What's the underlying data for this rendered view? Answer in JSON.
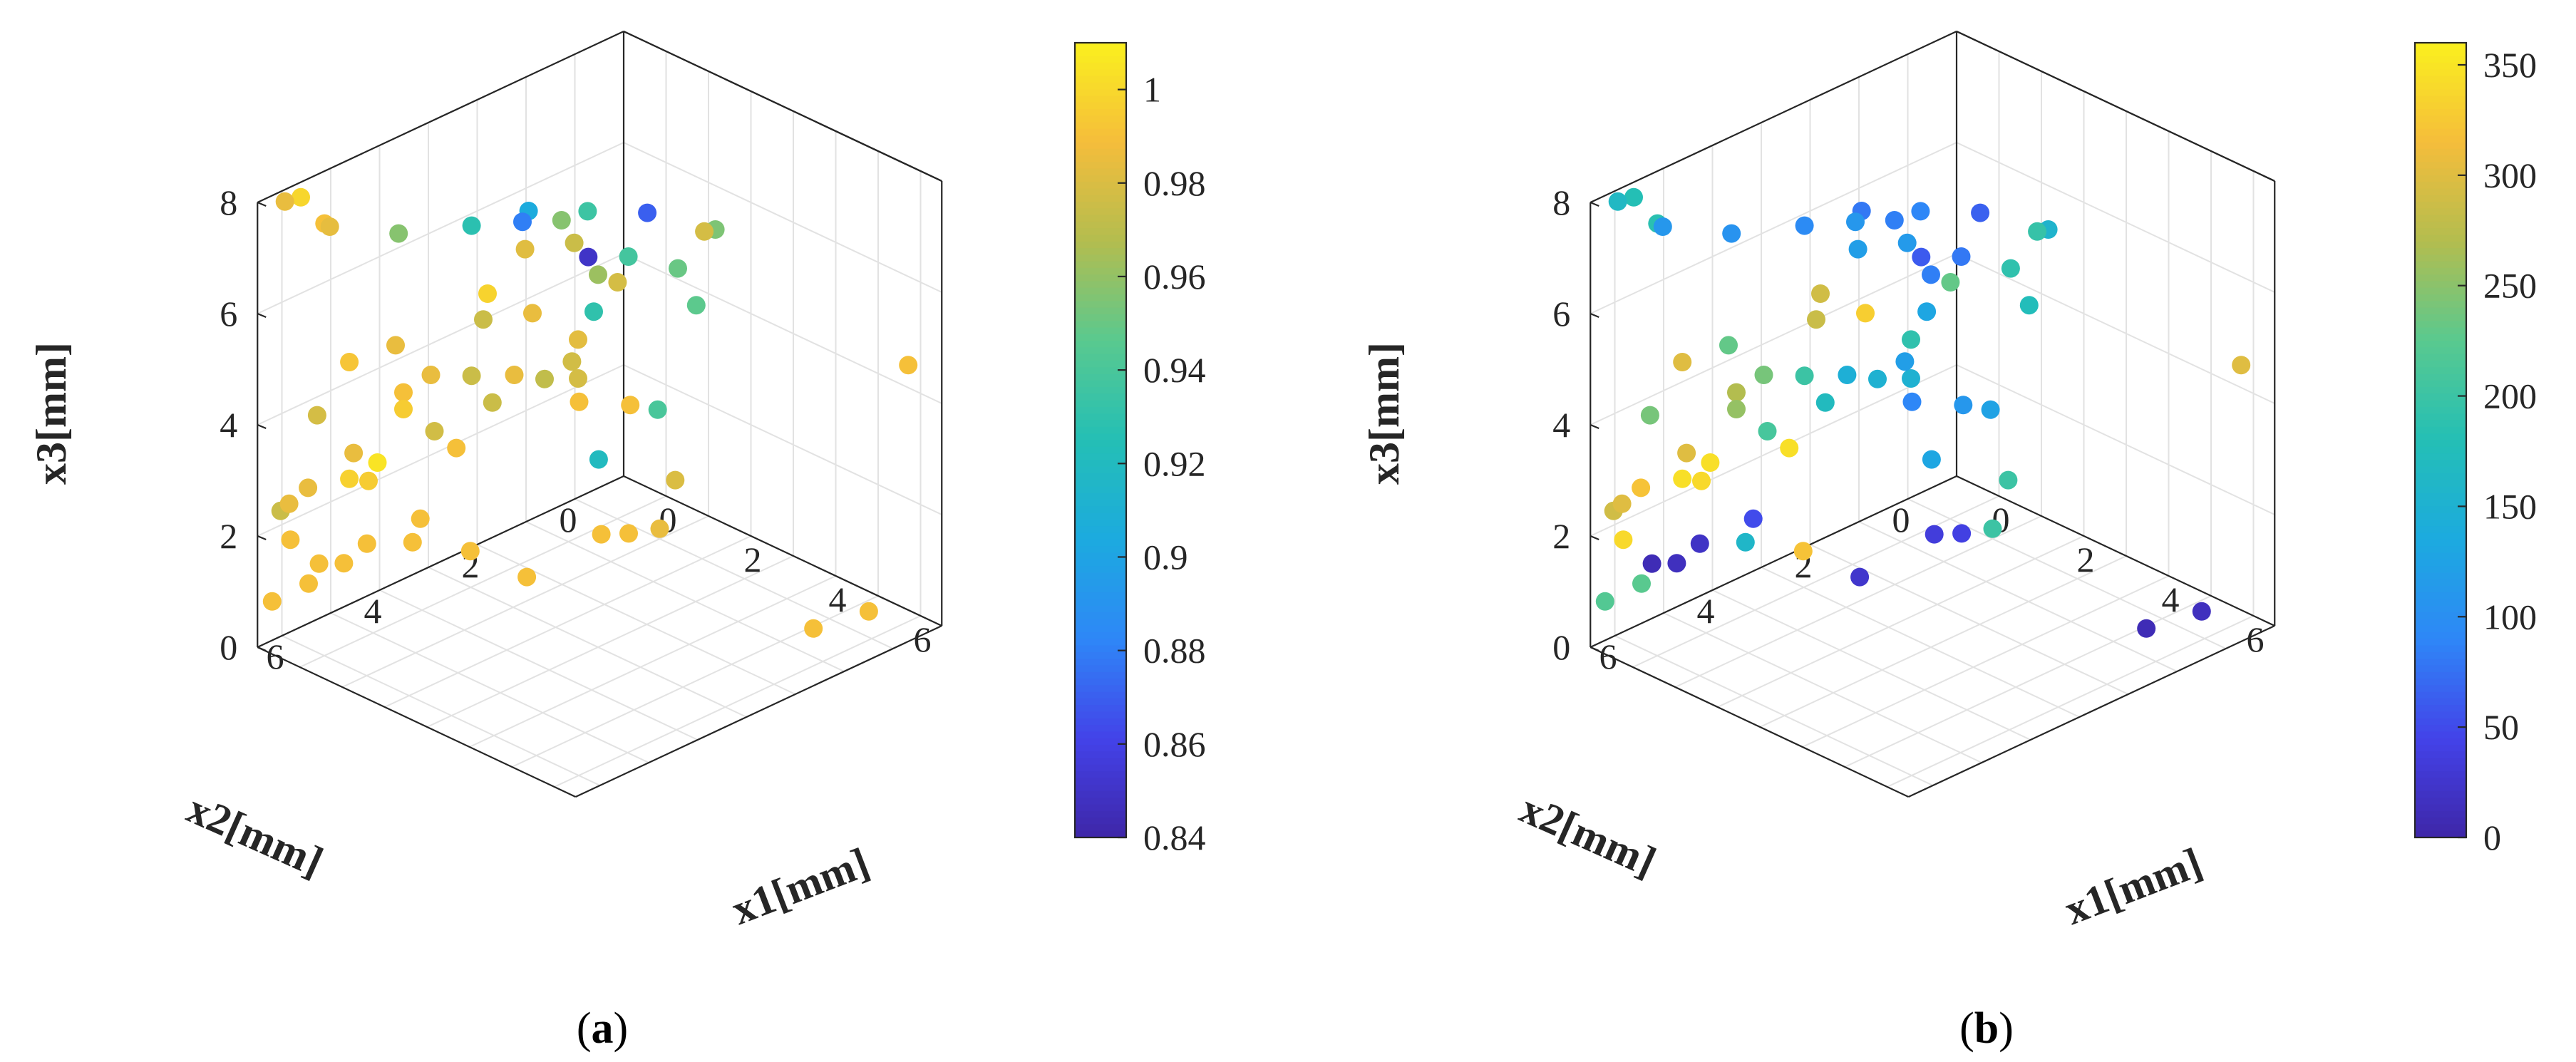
{
  "colormap": [
    "#3e26a8",
    "#4343e9",
    "#2e87f7",
    "#1caadf",
    "#24bfb5",
    "#59c98f",
    "#b3bd4f",
    "#f5bd3b",
    "#faf01e"
  ],
  "chart_data": [
    {
      "type": "scatter3d",
      "panel": "a",
      "caption_letter": "a",
      "caption_open": "(",
      "caption_close": ")",
      "xlabel": "x1[mm]",
      "ylabel": "x2[mm]",
      "zlabel": "x3[mm]",
      "xlim": [
        0,
        7.5
      ],
      "ylim": [
        0,
        7.5
      ],
      "zlim": [
        0,
        8
      ],
      "x_ticks": [
        "0",
        "2",
        "4",
        "6"
      ],
      "y_ticks": [
        "0",
        "2",
        "4",
        "6"
      ],
      "z_ticks": [
        "0",
        "2",
        "4",
        "6",
        "8"
      ],
      "colorbar": {
        "range": [
          0.84,
          1.01
        ],
        "ticks": [
          "0.84",
          "0.86",
          "0.88",
          "0.9",
          "0.92",
          "0.94",
          "0.96",
          "0.98",
          "1"
        ]
      },
      "points": [
        [
          0.3,
          7.2,
          8.0,
          0.985
        ],
        [
          0.1,
          6.7,
          7.8,
          0.999
        ],
        [
          0.2,
          6.3,
          7.2,
          0.99
        ],
        [
          0.9,
          6.8,
          7.6,
          0.984
        ],
        [
          1.6,
          6.0,
          7.4,
          0.957
        ],
        [
          2.4,
          5.2,
          7.5,
          0.928
        ],
        [
          3.4,
          4.9,
          8.0,
          0.905
        ],
        [
          3.6,
          4.4,
          7.7,
          0.957
        ],
        [
          5.7,
          3.3,
          7.8,
          0.978
        ],
        [
          6.2,
          3.9,
          6.9,
          0.947
        ],
        [
          5.5,
          2.9,
          7.6,
          0.955
        ],
        [
          4.7,
          3.6,
          7.9,
          0.87
        ],
        [
          4.1,
          4.3,
          8.0,
          0.935
        ],
        [
          3.6,
          5.2,
          8.0,
          0.88
        ],
        [
          4.6,
          3.9,
          7.2,
          0.938
        ],
        [
          3.9,
          4.4,
          7.4,
          0.975
        ],
        [
          3.2,
          4.8,
          7.2,
          0.982
        ],
        [
          4.0,
          4.2,
          7.1,
          0.85
        ],
        [
          4.0,
          4.0,
          6.7,
          0.962
        ],
        [
          4.0,
          3.6,
          6.4,
          0.978
        ],
        [
          3.9,
          4.0,
          6.0,
          0.93
        ],
        [
          4.5,
          2.8,
          6.5,
          0.95
        ],
        [
          2.2,
          4.7,
          6.0,
          0.998
        ],
        [
          1.3,
          5.8,
          5.2,
          0.985
        ],
        [
          2.8,
          4.3,
          5.7,
          0.985
        ],
        [
          2.1,
          4.7,
          5.5,
          0.975
        ],
        [
          3.3,
          3.8,
          5.2,
          0.983
        ],
        [
          3.2,
          4.4,
          4.7,
          0.972
        ],
        [
          2.1,
          5.7,
          3.9,
          0.977
        ],
        [
          0.9,
          6.4,
          5.0,
          0.992
        ],
        [
          0.6,
          6.8,
          4.1,
          0.978
        ],
        [
          2.6,
          4.5,
          4.6,
          0.985
        ],
        [
          3.3,
          3.8,
          4.5,
          0.978
        ],
        [
          2.2,
          4.6,
          4.0,
          0.975
        ],
        [
          3.5,
          4.1,
          5.0,
          0.977
        ],
        [
          2.4,
          5.2,
          4.8,
          0.975
        ],
        [
          1.9,
          5.6,
          4.8,
          0.985
        ],
        [
          1.6,
          5.9,
          4.5,
          0.99
        ],
        [
          1.6,
          5.9,
          4.2,
          0.995
        ],
        [
          1.1,
          6.0,
          3.1,
          1.005
        ],
        [
          1.0,
          6.4,
          3.4,
          0.985
        ],
        [
          0.9,
          6.4,
          2.9,
          0.997
        ],
        [
          0.5,
          6.9,
          2.8,
          0.985
        ],
        [
          0.4,
          7.2,
          2.6,
          0.985
        ],
        [
          0.2,
          7.2,
          2.4,
          0.975
        ],
        [
          0.2,
          7.0,
          1.8,
          0.99
        ],
        [
          2.5,
          5.6,
          3.7,
          0.99
        ],
        [
          3.9,
          4.3,
          4.5,
          0.99
        ],
        [
          4.3,
          3.6,
          4.3,
          0.99
        ],
        [
          2.6,
          5.4,
          1.8,
          0.99
        ],
        [
          1.7,
          5.8,
          1.8,
          0.99
        ],
        [
          1.2,
          6.3,
          1.8,
          0.99
        ],
        [
          1.0,
          6.6,
          1.5,
          0.99
        ],
        [
          0.3,
          6.5,
          1.2,
          0.99
        ],
        [
          0.0,
          7.2,
          0.7,
          0.99
        ],
        [
          0.4,
          6.8,
          1.0,
          0.99
        ],
        [
          3.9,
          3.9,
          3.3,
          0.92
        ],
        [
          4.6,
          3.3,
          4.2,
          0.94
        ],
        [
          4.9,
          3.2,
          3.0,
          0.98
        ],
        [
          5.8,
          4.3,
          2.9,
          0.985
        ],
        [
          7.4,
          0.6,
          4.9,
          0.99
        ],
        [
          6.2,
          1.5,
          0.1,
          0.99
        ],
        [
          6.7,
          0.8,
          0.3,
          0.99
        ],
        [
          1.4,
          3.2,
          0.0,
          0.99
        ],
        [
          1.2,
          1.5,
          0.0,
          0.99
        ],
        [
          1.5,
          1.2,
          0.0,
          0.99
        ],
        [
          0.5,
          4.6,
          1.3,
          0.99
        ],
        [
          0.2,
          5.4,
          2.2,
          0.995
        ]
      ]
    },
    {
      "type": "scatter3d",
      "panel": "b",
      "caption_letter": "b",
      "caption_open": "(",
      "caption_close": ")",
      "xlabel": "x1[mm]",
      "ylabel": "x2[mm]",
      "zlabel": "x3[mm]",
      "xlim": [
        0,
        7.5
      ],
      "ylim": [
        0,
        7.5
      ],
      "zlim": [
        0,
        8
      ],
      "x_ticks": [
        "0",
        "2",
        "4",
        "6"
      ],
      "y_ticks": [
        "0",
        "2",
        "4",
        "6"
      ],
      "z_ticks": [
        "0",
        "2",
        "4",
        "6",
        "8"
      ],
      "colorbar": {
        "range": [
          0,
          360
        ],
        "ticks": [
          "0",
          "50",
          "100",
          "150",
          "200",
          "250",
          "300",
          "350"
        ]
      },
      "points": [
        [
          0.3,
          7.2,
          8.0,
          165
        ],
        [
          0.1,
          6.7,
          7.8,
          180
        ],
        [
          0.2,
          6.3,
          7.2,
          185
        ],
        [
          0.9,
          6.8,
          7.6,
          110
        ],
        [
          1.6,
          6.0,
          7.4,
          105
        ],
        [
          2.4,
          5.2,
          7.5,
          95
        ],
        [
          3.4,
          4.9,
          8.0,
          80
        ],
        [
          3.6,
          4.4,
          7.7,
          85
        ],
        [
          5.7,
          3.3,
          7.8,
          195
        ],
        [
          6.2,
          3.9,
          6.9,
          175
        ],
        [
          5.5,
          2.9,
          7.6,
          155
        ],
        [
          4.7,
          3.6,
          7.9,
          65
        ],
        [
          4.1,
          4.3,
          8.0,
          90
        ],
        [
          3.6,
          5.2,
          8.0,
          110
        ],
        [
          4.6,
          3.9,
          7.2,
          80
        ],
        [
          3.9,
          4.4,
          7.4,
          115
        ],
        [
          3.2,
          4.8,
          7.2,
          120
        ],
        [
          4.0,
          4.2,
          7.1,
          60
        ],
        [
          4.0,
          4.0,
          6.7,
          85
        ],
        [
          4.0,
          3.6,
          6.4,
          230
        ],
        [
          3.9,
          4.0,
          6.0,
          130
        ],
        [
          4.5,
          2.8,
          6.5,
          190
        ],
        [
          2.2,
          4.7,
          6.0,
          290
        ],
        [
          1.3,
          5.8,
          5.2,
          230
        ],
        [
          2.8,
          4.3,
          5.7,
          330
        ],
        [
          2.1,
          4.7,
          5.5,
          285
        ],
        [
          3.3,
          3.8,
          5.2,
          190
        ],
        [
          3.2,
          4.4,
          4.7,
          150
        ],
        [
          2.1,
          5.7,
          3.9,
          210
        ],
        [
          0.9,
          6.4,
          5.0,
          300
        ],
        [
          0.6,
          6.8,
          4.1,
          240
        ],
        [
          2.6,
          4.5,
          4.6,
          145
        ],
        [
          3.3,
          3.8,
          4.5,
          150
        ],
        [
          2.2,
          4.6,
          4.0,
          170
        ],
        [
          3.5,
          4.1,
          5.0,
          120
        ],
        [
          2.4,
          5.2,
          4.8,
          200
        ],
        [
          1.9,
          5.6,
          4.8,
          240
        ],
        [
          1.6,
          5.9,
          4.5,
          270
        ],
        [
          1.6,
          5.9,
          4.2,
          255
        ],
        [
          1.1,
          6.0,
          3.1,
          345
        ],
        [
          1.0,
          6.4,
          3.4,
          300
        ],
        [
          0.9,
          6.4,
          2.9,
          345
        ],
        [
          0.5,
          6.9,
          2.8,
          320
        ],
        [
          0.4,
          7.2,
          2.6,
          300
        ],
        [
          0.2,
          7.2,
          2.4,
          290
        ],
        [
          0.2,
          7.0,
          1.8,
          340
        ],
        [
          2.5,
          5.6,
          3.7,
          345
        ],
        [
          3.9,
          4.3,
          4.5,
          90
        ],
        [
          4.3,
          3.6,
          4.3,
          110
        ],
        [
          2.6,
          5.4,
          1.8,
          320
        ],
        [
          1.7,
          5.8,
          1.8,
          160
        ],
        [
          1.2,
          6.3,
          1.8,
          20
        ],
        [
          1.0,
          6.6,
          1.5,
          15
        ],
        [
          0.3,
          6.5,
          1.2,
          10
        ],
        [
          0.0,
          7.2,
          0.7,
          220
        ],
        [
          0.4,
          6.8,
          1.0,
          225
        ],
        [
          3.9,
          3.9,
          3.3,
          130
        ],
        [
          4.6,
          3.3,
          4.2,
          125
        ],
        [
          4.9,
          3.2,
          3.0,
          200
        ],
        [
          5.8,
          4.3,
          2.9,
          200
        ],
        [
          7.4,
          0.6,
          4.9,
          300
        ],
        [
          6.2,
          1.5,
          0.1,
          10
        ],
        [
          6.7,
          0.8,
          0.3,
          15
        ],
        [
          1.4,
          3.2,
          0.0,
          25
        ],
        [
          1.2,
          1.5,
          0.0,
          35
        ],
        [
          1.5,
          1.2,
          0.0,
          40
        ],
        [
          0.5,
          4.6,
          1.3,
          50
        ],
        [
          0.2,
          5.4,
          2.2,
          340
        ]
      ]
    }
  ]
}
